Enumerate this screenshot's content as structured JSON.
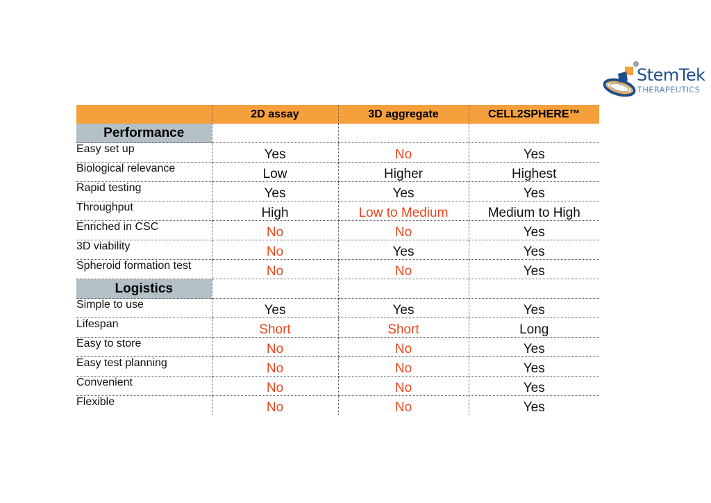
{
  "logo": {
    "name": "StemTek",
    "subtitle": "THERAPEUTICS"
  },
  "table": {
    "columns": [
      "2D assay",
      "3D aggregate",
      "CELL2SPHERE™"
    ],
    "sections": [
      {
        "title": "Performance",
        "rows": [
          {
            "label": "Easy set up",
            "values": [
              "Yes",
              "No",
              "Yes"
            ]
          },
          {
            "label": "Biological relevance",
            "values": [
              "Low",
              "Higher",
              "Highest"
            ]
          },
          {
            "label": "Rapid testing",
            "values": [
              "Yes",
              "Yes",
              "Yes"
            ]
          },
          {
            "label": "Throughput",
            "values": [
              "High",
              "Low to Medium",
              "Medium to High"
            ]
          },
          {
            "label": "Enriched in CSC",
            "values": [
              "No",
              "No",
              "Yes"
            ]
          },
          {
            "label": "3D viability",
            "values": [
              "No",
              "Yes",
              "Yes"
            ]
          },
          {
            "label": "Spheroid formation test",
            "values": [
              "No",
              "No",
              "Yes"
            ]
          }
        ]
      },
      {
        "title": "Logistics",
        "rows": [
          {
            "label": "Simple to use",
            "values": [
              "Yes",
              "Yes",
              "Yes"
            ]
          },
          {
            "label": "Lifespan",
            "values": [
              "Short",
              "Short",
              "Long"
            ]
          },
          {
            "label": "Easy to store",
            "values": [
              "No",
              "No",
              "Yes"
            ]
          },
          {
            "label": "Easy test planning",
            "values": [
              "No",
              "No",
              "Yes"
            ]
          },
          {
            "label": "Convenient",
            "values": [
              "No",
              "No",
              "Yes"
            ]
          },
          {
            "label": "Flexible",
            "values": [
              "No",
              "No",
              "Yes"
            ]
          }
        ]
      }
    ],
    "red_values": [
      "No",
      "Short",
      "Low to Medium"
    ],
    "colors": {
      "header": "#f5a03c",
      "section": "#b3c0c5",
      "negative": "#e8481f",
      "positive": "#111111"
    }
  }
}
